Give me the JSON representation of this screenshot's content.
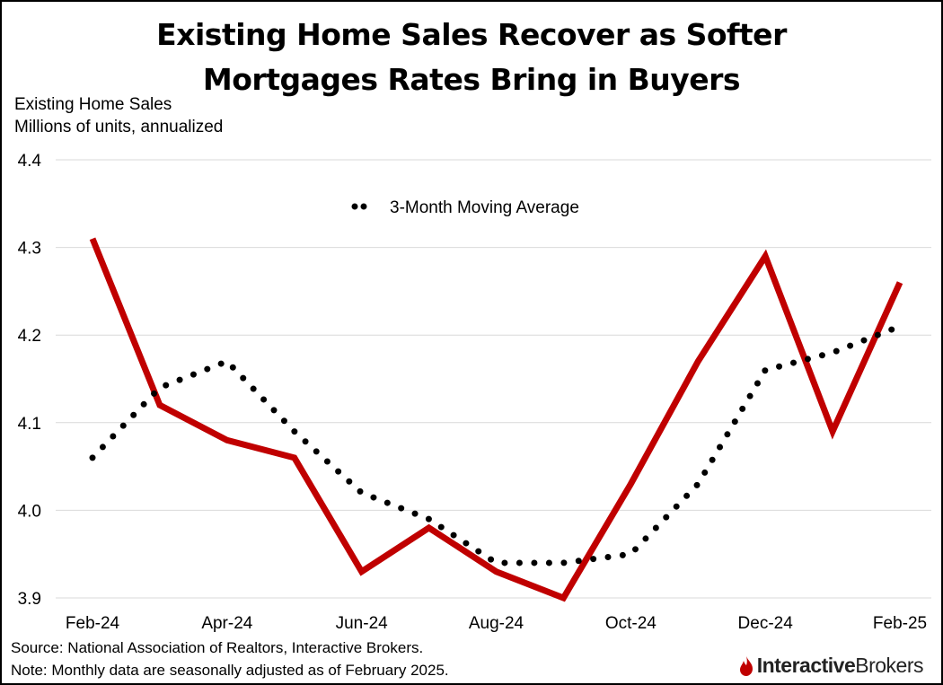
{
  "title_line1": "Existing Home Sales Recover as Softer",
  "title_line2": "Mortgages Rates Bring in Buyers",
  "ylabel_line1": "Existing Home Sales",
  "ylabel_line2": "Millions of units, annualized",
  "source": "Source: National Association of Realtors, Interactive Brokers.",
  "note": "Note: Monthly data are seasonally adjusted as of February 2025.",
  "logo": {
    "part1": "Interactive",
    "part2": "Brokers",
    "icon": "flame-logo-icon"
  },
  "colors": {
    "sales_line": "#C00000",
    "moving_average": "#000000",
    "grid": "#d9d9d9"
  },
  "chart_data": {
    "type": "line",
    "x": [
      "Feb-24",
      "Mar-24",
      "Apr-24",
      "May-24",
      "Jun-24",
      "Jul-24",
      "Aug-24",
      "Sep-24",
      "Oct-24",
      "Nov-24",
      "Dec-24",
      "Jan-25",
      "Feb-25"
    ],
    "x_tick_labels": [
      "Feb-24",
      "Apr-24",
      "Jun-24",
      "Aug-24",
      "Oct-24",
      "Dec-24",
      "Feb-25"
    ],
    "ylim": [
      3.9,
      4.4
    ],
    "y_ticks": [
      "3.9",
      "4.0",
      "4.1",
      "4.2",
      "4.3",
      "4.4"
    ],
    "grid": true,
    "legend_position": "top-center",
    "series": [
      {
        "name": "",
        "style": "solid",
        "values": [
          4.31,
          4.12,
          4.08,
          4.06,
          3.93,
          3.98,
          3.93,
          3.9,
          4.03,
          4.17,
          4.29,
          4.09,
          4.26
        ]
      },
      {
        "name": "3-Month Moving Average",
        "style": "dotted",
        "values": [
          4.06,
          4.14,
          4.17,
          4.09,
          4.02,
          3.99,
          3.94,
          3.94,
          3.95,
          4.03,
          4.16,
          4.18,
          4.21
        ]
      }
    ]
  }
}
